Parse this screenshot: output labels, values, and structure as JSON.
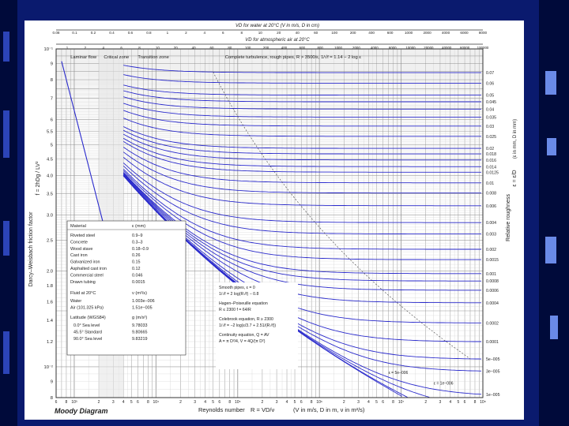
{
  "colors": {
    "background": "#0a1a6e",
    "paper": "#ffffff",
    "curve": "#2a2acc",
    "grid": "#9a9a9a",
    "text": "#222222"
  },
  "chart_data": {
    "type": "line",
    "title": "Moody Diagram",
    "xscale": "log",
    "yscale": "log",
    "xlim": [
      600,
      100000000
    ],
    "ylim": [
      0.008,
      0.1
    ],
    "xlabel_text": "Reynolds number",
    "xlabel_formula": "R = VD/ν",
    "xlabel_units": "(V in m/s, D in m, ν in m²/s)",
    "ylabel_text": "Darcy–Weisbach friction factor",
    "ylabel_formula": "f = 2hDg / LV²",
    "right_label_text": "Relative roughness",
    "right_label_formula": "ε = ε/D",
    "right_label_units": "(ε in mm, D in mm)",
    "top_axis_water_label": "VD for water at 20°C (V in m/s, D in cm)",
    "top_axis_air_label": "VD for atmospheric air at 20°C",
    "top_axis_water_ticks": [
      "0.08",
      "0.1",
      "0.2",
      "0.4",
      "0.6",
      "0.8",
      "1",
      "2",
      "4",
      "6",
      "8",
      "10",
      "20",
      "40",
      "60",
      "100",
      "200",
      "400",
      "600",
      "1000",
      "2000",
      "4000",
      "6000",
      "8000"
    ],
    "top_axis_air_ticks": [
      "1",
      "2",
      "4",
      "6",
      "8",
      "10",
      "20",
      "40",
      "60",
      "80",
      "100",
      "200",
      "400",
      "600",
      "800",
      "1000",
      "2000",
      "4000",
      "6000",
      "10000",
      "20000",
      "40000",
      "60000",
      "100000"
    ],
    "y_tick_labels": [
      "10⁻¹",
      "9",
      "8",
      "7",
      "6",
      "5.5",
      "5",
      "4.5",
      "4.0",
      "3.5",
      "3.0",
      "3",
      "2.5",
      "2.0",
      "2",
      "1.8",
      "1.6",
      "1.4",
      "1.2",
      "10⁻²",
      "9",
      "8"
    ],
    "x_tick_labels": [
      "6",
      "8",
      "10³",
      "2",
      "3",
      "4",
      "5",
      "6",
      "8",
      "10⁴",
      "2",
      "3",
      "4",
      "5",
      "6",
      "8",
      "10⁵",
      "2",
      "3",
      "4",
      "5",
      "6",
      "8",
      "10⁶",
      "2",
      "3",
      "4",
      "5",
      "6",
      "8",
      "10⁷",
      "2",
      "3",
      "4",
      "5",
      "6",
      "8",
      "10⁸"
    ],
    "zone_labels": [
      "Laminar flow",
      "Critical zone",
      "Transition zone",
      "Complete turbulence, rough pipes, R > 3500/ε, 1/√f = 1.14 − 2 log ε"
    ],
    "roughness_labels": [
      "0.07",
      "0.06",
      "0.05",
      "0.045",
      "0.04",
      "0.035",
      "0.03",
      "0.025",
      "0.02",
      "0.018",
      "0.016",
      "0.014",
      "0.0125",
      "0.01",
      "0.008",
      "0.006",
      "0.004",
      "0.003",
      "0.002",
      "0.0015",
      "0.001",
      "0.0008",
      "0.0006",
      "0.0004",
      "0.0002",
      "0.0001",
      "5e−005",
      "3e−005",
      "1e−005"
    ],
    "roughness_values": [
      0.07,
      0.06,
      0.05,
      0.045,
      0.04,
      0.035,
      0.03,
      0.025,
      0.02,
      0.018,
      0.016,
      0.014,
      0.0125,
      0.01,
      0.008,
      0.006,
      0.004,
      0.003,
      0.002,
      0.0015,
      0.001,
      0.0008,
      0.0006,
      0.0004,
      0.0002,
      0.0001,
      5e-05,
      3e-05,
      1e-05
    ],
    "inline_curve_labels": [
      "ε = 5e−006",
      "ε = 1e−006"
    ],
    "material_table": {
      "headers": [
        "Material",
        "ε (mm)"
      ],
      "rows": [
        [
          "Riveted steel",
          "0.9–9"
        ],
        [
          "Concrete",
          "0.3–3"
        ],
        [
          "Wood stave",
          "0.18–0.9"
        ],
        [
          "Cast iron",
          "0.26"
        ],
        [
          "Galvanized iron",
          "0.15"
        ],
        [
          "Asphalted cast iron",
          "0.12"
        ],
        [
          "Commercial steel",
          "0.046"
        ],
        [
          "Drawn tubing",
          "0.0015"
        ]
      ],
      "fluid_headers": [
        "Fluid at 20°C",
        "ν (m²/s)"
      ],
      "fluid_rows": [
        [
          "Water",
          "1.003e−006"
        ],
        [
          "Air (101.325 kPa)",
          "1.51e−005"
        ]
      ],
      "latitude_headers": [
        "Latitude (WGS84)",
        "g (m/s²)"
      ],
      "latitude_rows": [
        [
          "0.0°   Sea level",
          "9.78033"
        ],
        [
          "45.5°  Standard",
          "9.80665"
        ],
        [
          "90.0°  Sea level",
          "9.83219"
        ]
      ]
    },
    "equations": [
      "Smooth pipes, ε = 0",
      "1/√f = 2 log(R√f) − 0.8",
      "Hagen–Poiseuille equation",
      "R ≤ 2300   f = 64/R",
      "Colebrook equation, R ≥ 2300",
      "1/√f = −2 log(ε/3.7 + 2.51/(R√f))",
      "Continuity equation, Q = AV",
      "A = π D²/4,  V = 4Q/(π D²)"
    ]
  }
}
